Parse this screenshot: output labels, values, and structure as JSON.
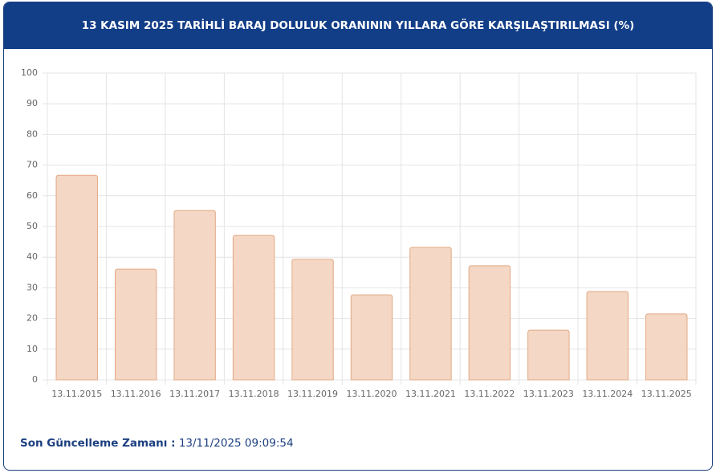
{
  "chart_data": {
    "type": "bar",
    "title": "13 KASIM 2025 TARİHLİ BARAJ DOLULUK ORANININ YILLARA GÖRE KARŞILAŞTIRILMASI (%)",
    "categories": [
      "13.11.2015",
      "13.11.2016",
      "13.11.2017",
      "13.11.2018",
      "13.11.2019",
      "13.11.2020",
      "13.11.2021",
      "13.11.2022",
      "13.11.2023",
      "13.11.2024",
      "13.11.2025"
    ],
    "values": [
      66.7,
      36.1,
      55.2,
      47.1,
      39.3,
      27.7,
      43.2,
      37.2,
      16.2,
      28.8,
      21.5
    ],
    "color": "#f4d7c4",
    "border_color": "#e3a985",
    "ylim": [
      0,
      100
    ],
    "yticks": [
      0,
      10,
      20,
      30,
      40,
      50,
      60,
      70,
      80,
      90,
      100
    ],
    "grid": true
  },
  "footer": {
    "label": "Son Güncelleme Zamanı :",
    "value": "13/11/2025 09:09:54"
  }
}
